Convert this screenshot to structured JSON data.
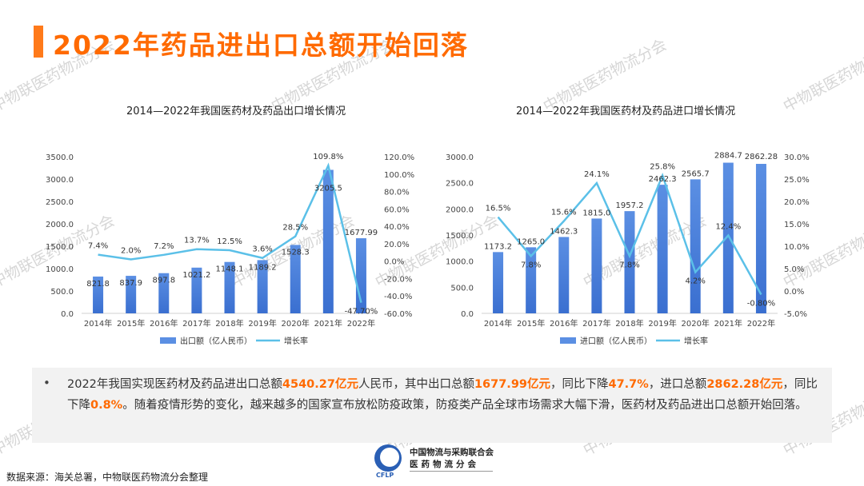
{
  "page_title": "2022年药品进出口总额开始回落",
  "watermark": "中物联医药物流分会",
  "chart_data": [
    {
      "type": "bar+line",
      "title": "2014—2022年我国医药材及药品出口增长情况",
      "categories": [
        "2014年",
        "2015年",
        "2016年",
        "2017年",
        "2018年",
        "2019年",
        "2020年",
        "2021年",
        "2022年"
      ],
      "series": [
        {
          "name": "出口额（亿人民币）",
          "type": "bar",
          "axis": "left",
          "values": [
            821.8,
            837.9,
            897.8,
            1021.2,
            1148.1,
            1189.2,
            1528.3,
            3205.5,
            1677.99
          ],
          "labels": [
            "821.8",
            "837.9",
            "897.8",
            "1021.2",
            "1148.1",
            "1189.2",
            "1528.3",
            "3205.5",
            "1677.99"
          ]
        },
        {
          "name": "增长率",
          "type": "line",
          "axis": "right",
          "values": [
            7.4,
            2.0,
            7.2,
            13.7,
            12.5,
            3.6,
            28.5,
            109.8,
            -47.7
          ],
          "labels": [
            "7.4%",
            "2.0%",
            "7.2%",
            "13.7%",
            "12.5%",
            "3.6%",
            "28.5%",
            "109.8%",
            "-47.70%"
          ]
        }
      ],
      "y_left": {
        "min": 0,
        "max": 3500,
        "step": 500,
        "ticks": [
          "0.0",
          "500.0",
          "1000.0",
          "1500.0",
          "2000.0",
          "2500.0",
          "3000.0",
          "3500.0"
        ]
      },
      "y_right": {
        "min": -60,
        "max": 120,
        "step": 20,
        "ticks": [
          "-60.0%",
          "-40.0%",
          "-20.0%",
          "0.0%",
          "20.0%",
          "40.0%",
          "60.0%",
          "80.0%",
          "100.0%",
          "120.0%"
        ]
      },
      "legend_position": "bottom"
    },
    {
      "type": "bar+line",
      "title": "2014—2022年我国医药材及药品进口增长情况",
      "categories": [
        "2014年",
        "2015年",
        "2016年",
        "2017年",
        "2018年",
        "2019年",
        "2020年",
        "2021年",
        "2022年"
      ],
      "series": [
        {
          "name": "进口额（亿人民币）",
          "type": "bar",
          "axis": "left",
          "values": [
            1173.2,
            1265.0,
            1462.3,
            1815.0,
            1957.2,
            2462.3,
            2565.7,
            2884.7,
            2862.28
          ],
          "labels": [
            "1173.2",
            "1265.0",
            "1462.3",
            "1815.0",
            "1957.2",
            "2462.3",
            "2565.7",
            "2884.7",
            "2862.28"
          ]
        },
        {
          "name": "增长率",
          "type": "line",
          "axis": "right",
          "values": [
            16.5,
            7.8,
            15.6,
            24.1,
            7.8,
            25.8,
            4.2,
            12.4,
            -0.8
          ],
          "labels": [
            "16.5%",
            "7.8%",
            "15.6%",
            "24.1%",
            "7.8%",
            "25.8%",
            "4.2%",
            "12.4%",
            "-0.80%"
          ]
        }
      ],
      "y_left": {
        "min": 0,
        "max": 3000,
        "step": 500,
        "ticks": [
          "0.0",
          "500.0",
          "1000.0",
          "1500.0",
          "2000.0",
          "2500.0",
          "3000.0"
        ]
      },
      "y_right": {
        "min": -5,
        "max": 30,
        "step": 5,
        "ticks": [
          "-5.0%",
          "0.0%",
          "5.0%",
          "10.0%",
          "15.0%",
          "20.0%",
          "25.0%",
          "30.0%"
        ]
      },
      "legend_position": "bottom"
    }
  ],
  "summary": {
    "bullet": "•",
    "t1": "2022年我国实现医药材及药品进出口总额",
    "h1": "4540.27亿元",
    "t2": "人民币，其中出口总额",
    "h2": "1677.99亿元",
    "t3": "，同比下降",
    "h3": "47.7%",
    "t4": "，进口总额",
    "h4": "2862.28亿元",
    "t5": "，同比下降",
    "h5": "0.8%",
    "t6": "。随着疫情形势的变化，越来越多的国家宣布放松防疫政策，防疫类产品全球市场需求大幅下滑，医药材及药品进出口总额开始回落。"
  },
  "source": "数据来源：海关总署，中物联医药物流分会整理",
  "logo": {
    "abbr": "CFLP",
    "line1": "中国物流与采购联合会",
    "line2": "医药物流分会"
  },
  "colors": {
    "accent": "#ff6a00",
    "bar_top": "#5b8fe3",
    "bar_bottom": "#3a6fd0",
    "line": "#5bc0e8"
  }
}
